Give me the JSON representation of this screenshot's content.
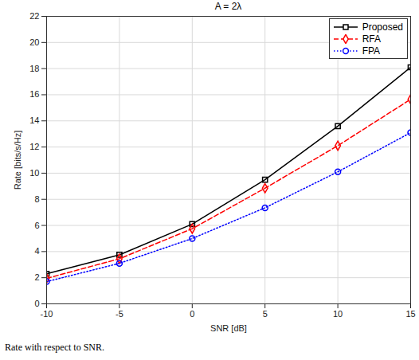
{
  "chart_data": {
    "type": "line",
    "title": "A = 2λ",
    "caption": "Rate with respect to SNR.",
    "x_label": "SNR [dB]",
    "y_label": "Rate [bits/s/Hz]",
    "x": [
      -10,
      -5,
      0,
      5,
      10,
      15
    ],
    "series": [
      {
        "name": "Proposed",
        "color": "#000000",
        "marker": "square",
        "line_style": "solid",
        "values": [
          2.3,
          3.75,
          6.1,
          9.5,
          13.6,
          18.1
        ]
      },
      {
        "name": "RFA",
        "color": "#ff0000",
        "marker": "diamond",
        "line_style": "dashed",
        "values": [
          1.95,
          3.45,
          5.75,
          8.85,
          12.1,
          15.65
        ]
      },
      {
        "name": "FPA",
        "color": "#0000ff",
        "marker": "circle",
        "line_style": "dotted",
        "values": [
          1.7,
          3.1,
          5.0,
          7.35,
          10.1,
          13.1
        ]
      }
    ],
    "xlim": [
      -10,
      15
    ],
    "xticks": [
      -10,
      -5,
      0,
      5,
      10,
      15
    ],
    "ylim": [
      0,
      22
    ],
    "yticks": [
      0,
      2,
      4,
      6,
      8,
      10,
      12,
      14,
      16,
      18,
      20,
      22
    ],
    "grid": true,
    "legend": "top-right"
  }
}
